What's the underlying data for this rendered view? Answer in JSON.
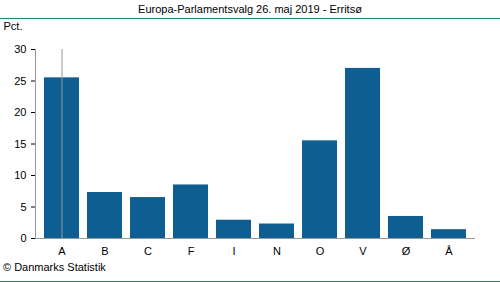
{
  "chart_data": {
    "type": "bar",
    "title": "Europa-Parlamentsvalg 26. maj 2019 - Erritsø",
    "categories": [
      "A",
      "B",
      "C",
      "F",
      "I",
      "N",
      "O",
      "V",
      "Ø",
      "Å"
    ],
    "values": [
      25.5,
      7.3,
      6.5,
      8.5,
      2.9,
      2.3,
      15.5,
      27.0,
      3.5,
      1.4
    ],
    "color": "#0f5e92",
    "y_label": "Pct.",
    "ylim": [
      0,
      30
    ],
    "yticks": [
      0,
      5,
      10,
      15,
      20,
      25,
      30
    ],
    "grid": false,
    "caption": "© Danmarks Statistik"
  }
}
